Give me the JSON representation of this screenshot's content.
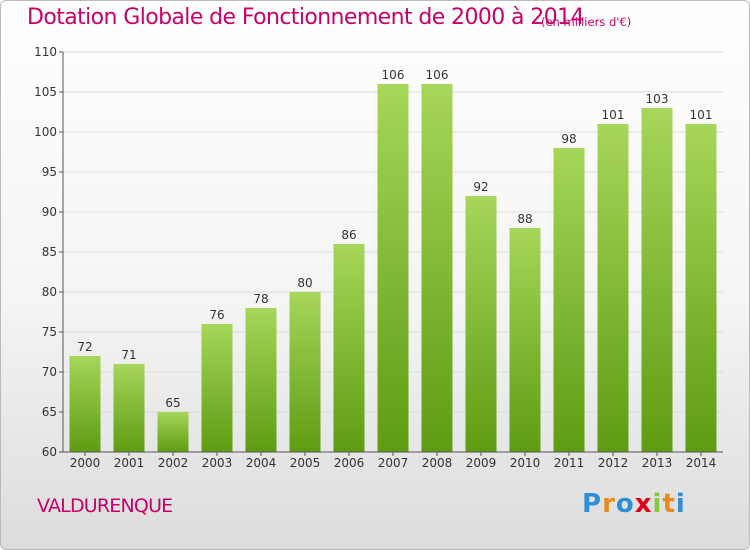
{
  "title": "Dotation Globale de Fonctionnement de 2000 à 2014",
  "subtitle": "(en milliers d'€)",
  "commune": "VALDURENQUE",
  "brand": {
    "text": "Proxiti",
    "letters": [
      "P",
      "r",
      "o",
      "x",
      "i",
      "t",
      "i"
    ]
  },
  "colors": {
    "title": "#c8006a",
    "bar_light": "#a6d65a",
    "bar_dark": "#5e9c12",
    "grid": "#dddddd"
  },
  "chart_data": {
    "type": "bar",
    "title": "Dotation Globale de Fonctionnement de 2000 à 2014",
    "subtitle": "(en milliers d'€)",
    "xlabel": "",
    "ylabel": "",
    "categories": [
      "2000",
      "2001",
      "2002",
      "2003",
      "2004",
      "2005",
      "2006",
      "2007",
      "2008",
      "2009",
      "2010",
      "2011",
      "2012",
      "2013",
      "2014"
    ],
    "values": [
      72,
      71,
      65,
      76,
      78,
      80,
      86,
      106,
      106,
      92,
      88,
      98,
      101,
      103,
      101
    ],
    "ylim": [
      60,
      110
    ],
    "yticks": [
      60,
      65,
      70,
      75,
      80,
      85,
      90,
      95,
      100,
      105,
      110
    ],
    "grid": true,
    "legend": "none",
    "data_labels": true
  }
}
